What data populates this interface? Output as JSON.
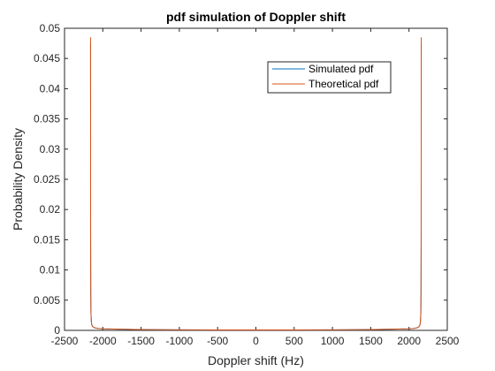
{
  "chart_data": {
    "type": "line",
    "title": "pdf simulation of Doppler shift",
    "xlabel": "Doppler shift (Hz)",
    "ylabel": "Probability Density",
    "xlim": [
      -2500,
      2500
    ],
    "ylim": [
      0,
      0.05
    ],
    "xticks": [
      -2500,
      -2000,
      -1500,
      -1000,
      -500,
      0,
      500,
      1000,
      1500,
      2000,
      2500
    ],
    "yticks": [
      0,
      0.005,
      0.01,
      0.015,
      0.02,
      0.025,
      0.03,
      0.035,
      0.04,
      0.045,
      0.05
    ],
    "xtick_labels": [
      "-2500",
      "-2000",
      "-1500",
      "-1000",
      "-500",
      "0",
      "500",
      "1000",
      "1500",
      "2000",
      "2500"
    ],
    "ytick_labels": [
      "0",
      "0.005",
      "0.01",
      "0.015",
      "0.02",
      "0.025",
      "0.03",
      "0.035",
      "0.04",
      "0.045",
      "0.05"
    ],
    "grid": false,
    "legend_position": "top-right",
    "series": [
      {
        "name": "Simulated pdf",
        "color": "#0072BD",
        "x": [
          -2160,
          -2159,
          -2157,
          -2155,
          -2150,
          -2145,
          -2140,
          -2130,
          -2100,
          -2050,
          -2000,
          -1500,
          -1000,
          -500,
          0,
          500,
          1000,
          1500,
          2000,
          2050,
          2100,
          2130,
          2140,
          2145,
          2150,
          2155,
          2157,
          2159,
          2160
        ],
        "y": [
          0.0475,
          0.015,
          0.006,
          0.003,
          0.0015,
          0.001,
          0.0008,
          0.0006,
          0.0004,
          0.0003,
          0.00025,
          0.00012,
          9e-05,
          8e-05,
          8e-05,
          8e-05,
          9e-05,
          0.00012,
          0.00025,
          0.0003,
          0.0004,
          0.0006,
          0.0008,
          0.001,
          0.0015,
          0.003,
          0.006,
          0.015,
          0.0475
        ]
      },
      {
        "name": "Theoretical pdf",
        "color": "#D95319",
        "x": [
          -2160,
          -2159,
          -2157,
          -2155,
          -2150,
          -2145,
          -2140,
          -2130,
          -2100,
          -2050,
          -2000,
          -1500,
          -1000,
          -500,
          0,
          500,
          1000,
          1500,
          2000,
          2050,
          2100,
          2130,
          2140,
          2145,
          2150,
          2155,
          2157,
          2159,
          2160
        ],
        "y": [
          0.0485,
          0.015,
          0.006,
          0.003,
          0.0015,
          0.001,
          0.0008,
          0.0006,
          0.0004,
          0.0003,
          0.00025,
          0.00012,
          9e-05,
          8e-05,
          8e-05,
          8e-05,
          9e-05,
          0.00012,
          0.00025,
          0.0003,
          0.0004,
          0.0006,
          0.0008,
          0.001,
          0.0015,
          0.003,
          0.006,
          0.015,
          0.0485
        ]
      }
    ]
  }
}
